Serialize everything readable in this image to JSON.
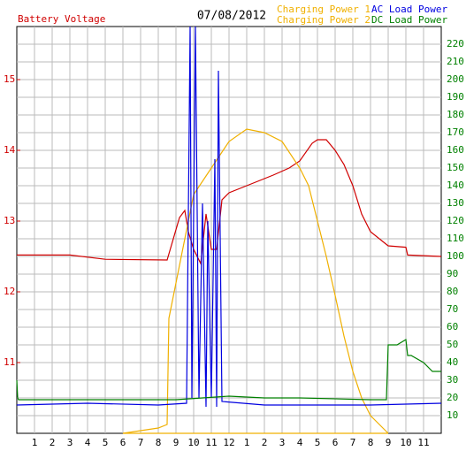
{
  "chart_data": {
    "type": "line",
    "title": "07/08/2012",
    "y_label": "Battery Voltage",
    "y_label_color": "#d00000",
    "y2_color": "#008000",
    "xlim": [
      0,
      24
    ],
    "xticks": [
      {
        "value": 1,
        "label": "1"
      },
      {
        "value": 2,
        "label": "2"
      },
      {
        "value": 3,
        "label": "3"
      },
      {
        "value": 4,
        "label": "4"
      },
      {
        "value": 5,
        "label": "5"
      },
      {
        "value": 6,
        "label": "6"
      },
      {
        "value": 7,
        "label": "7"
      },
      {
        "value": 8,
        "label": "8"
      },
      {
        "value": 9,
        "label": "9"
      },
      {
        "value": 10,
        "label": "10"
      },
      {
        "value": 11,
        "label": "11"
      },
      {
        "value": 12,
        "label": "12"
      },
      {
        "value": 13,
        "label": "1"
      },
      {
        "value": 14,
        "label": "2"
      },
      {
        "value": 15,
        "label": "3"
      },
      {
        "value": 16,
        "label": "4"
      },
      {
        "value": 17,
        "label": "5"
      },
      {
        "value": 18,
        "label": "6"
      },
      {
        "value": 19,
        "label": "7"
      },
      {
        "value": 20,
        "label": "8"
      },
      {
        "value": 21,
        "label": "9"
      },
      {
        "value": 22,
        "label": "10"
      },
      {
        "value": 23,
        "label": "11"
      }
    ],
    "ylim": [
      10,
      15.75
    ],
    "yticks": [
      11,
      12,
      13,
      14,
      15
    ],
    "y2lim": [
      0,
      230
    ],
    "y2ticks": [
      10,
      20,
      30,
      40,
      50,
      60,
      70,
      80,
      90,
      100,
      110,
      120,
      130,
      140,
      150,
      160,
      170,
      180,
      190,
      200,
      210,
      220
    ],
    "grid": true,
    "series": [
      {
        "name": "Battery Voltage",
        "color": "#d00000",
        "axis": "y",
        "x": [
          0,
          3,
          5,
          8.5,
          9.2,
          9.5,
          9.7,
          10,
          10.4,
          10.7,
          11,
          11.3,
          11.6,
          12,
          13,
          14.5,
          15.4,
          16,
          16.7,
          17,
          17.5,
          18,
          18.5,
          19,
          19.5,
          20,
          21,
          22,
          22.1,
          24
        ],
        "values": [
          12.52,
          12.52,
          12.46,
          12.45,
          13.05,
          13.15,
          12.85,
          12.6,
          12.4,
          13.1,
          12.6,
          12.6,
          13.3,
          13.4,
          13.5,
          13.65,
          13.75,
          13.85,
          14.1,
          14.15,
          14.15,
          14.0,
          13.8,
          13.5,
          13.1,
          12.85,
          12.65,
          12.63,
          12.52,
          12.5
        ]
      },
      {
        "name": "Charging Power 1",
        "color": "#f0b000",
        "axis": "y2",
        "x": [
          6,
          8,
          8.5,
          8.6,
          9,
          9.5,
          10,
          11,
          12,
          13,
          14,
          15,
          16,
          16.5,
          17,
          17.5,
          18,
          18.5,
          19,
          19.5,
          20,
          20.5,
          21
        ],
        "values": [
          0,
          3,
          5,
          65,
          85,
          110,
          135,
          150,
          165,
          172,
          170,
          165,
          150,
          140,
          120,
          100,
          78,
          55,
          35,
          20,
          10,
          5,
          0
        ]
      },
      {
        "name": "Charging Power 2",
        "color": "#f0b000",
        "axis": "y2",
        "x": [
          6,
          21
        ],
        "values": [
          0,
          0
        ]
      },
      {
        "name": "AC Load Power",
        "color": "#0000e0",
        "axis": "y2",
        "x": [
          0,
          4,
          8,
          9.6,
          9.8,
          9.9,
          10.1,
          10.3,
          10.5,
          10.7,
          10.8,
          11,
          11.2,
          11.3,
          11.4,
          11.6,
          14,
          20,
          24
        ],
        "values": [
          16,
          17,
          16,
          17,
          230,
          20,
          230,
          20,
          130,
          15,
          120,
          20,
          155,
          15,
          205,
          18,
          16,
          16,
          17
        ]
      },
      {
        "name": "DC Load Power",
        "color": "#008000",
        "axis": "y2",
        "x": [
          0,
          0.05,
          0.1,
          9,
          12,
          14,
          16,
          20,
          20.9,
          21,
          21.5,
          22,
          22.1,
          22.3,
          23,
          23.5,
          24
        ],
        "values": [
          30,
          20,
          19,
          19,
          21,
          20,
          20,
          19,
          19,
          50,
          50,
          53,
          44,
          44,
          40,
          35,
          35
        ]
      }
    ]
  }
}
